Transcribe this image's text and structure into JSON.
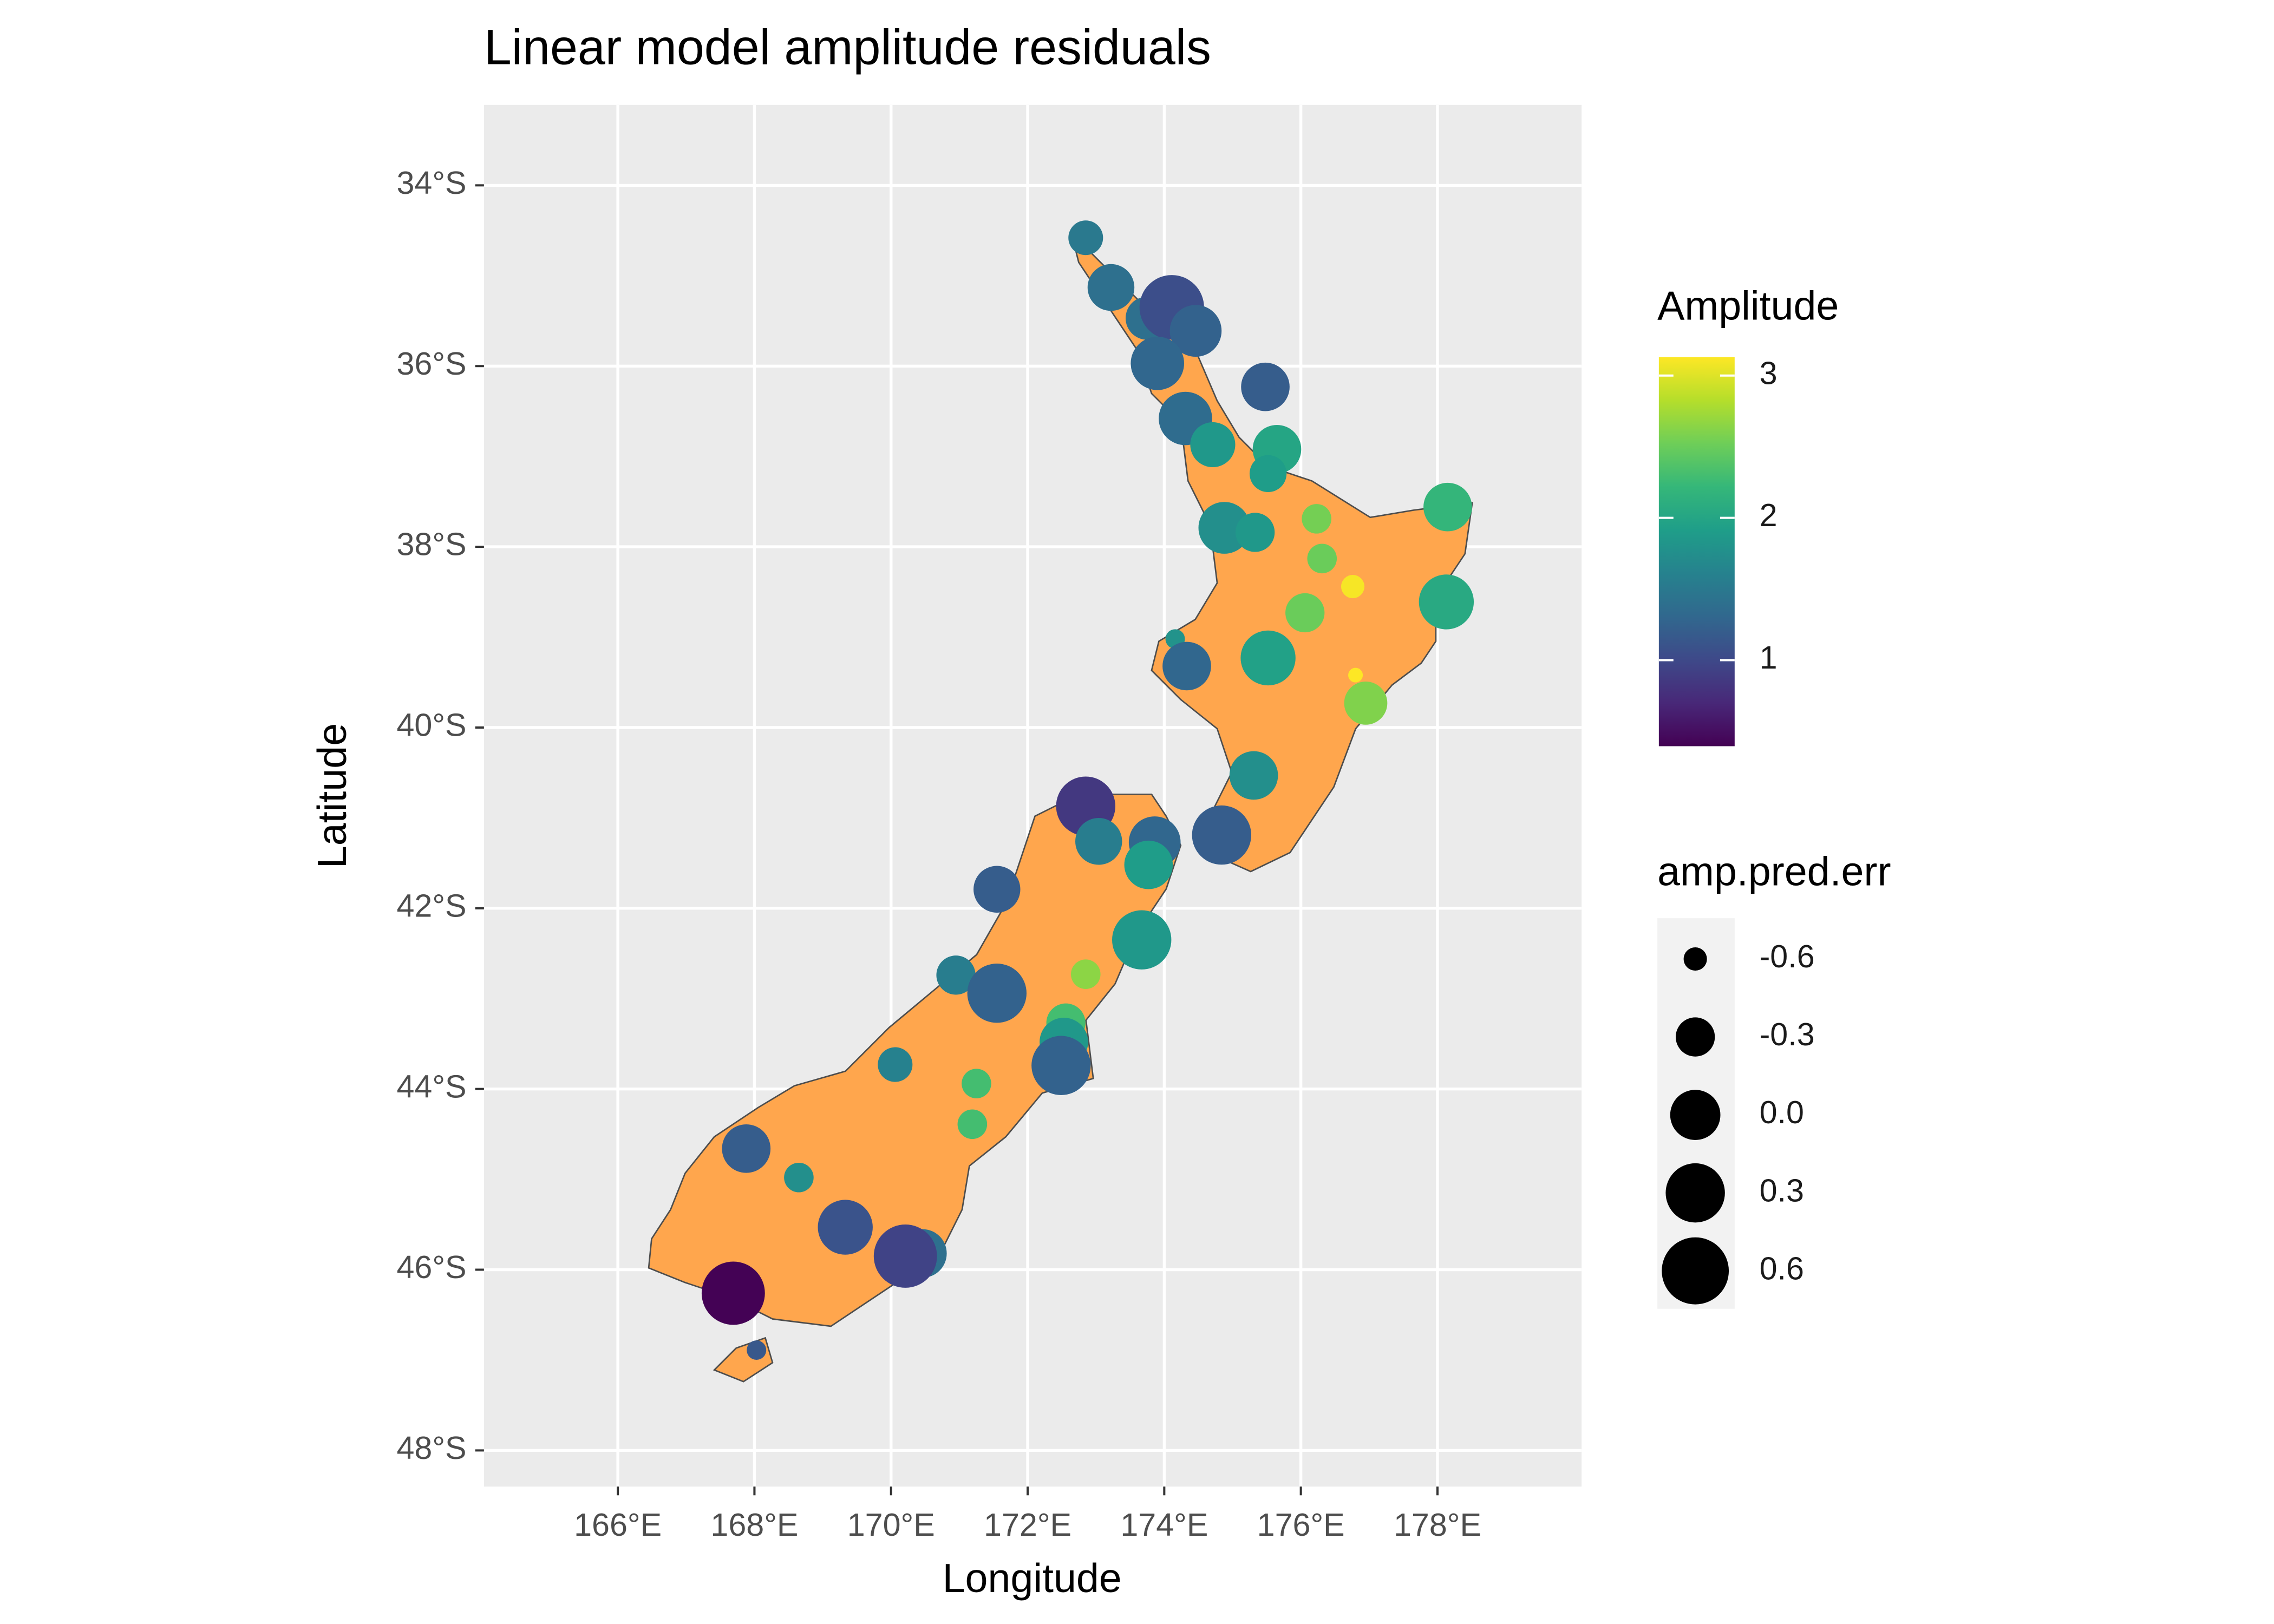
{
  "chart_data": {
    "type": "scatter",
    "title": "Linear model amplitude residuals",
    "x_label": "Longitude",
    "y_label": "Latitude",
    "xlim": [
      164.04,
      180.11
    ],
    "ylim": [
      -48.4,
      -33.11
    ],
    "xticks": [
      {
        "value": 166,
        "label": "166°E"
      },
      {
        "value": 168,
        "label": "168°E"
      },
      {
        "value": 170,
        "label": "170°E"
      },
      {
        "value": 172,
        "label": "172°E"
      },
      {
        "value": 174,
        "label": "174°E"
      },
      {
        "value": 176,
        "label": "176°E"
      },
      {
        "value": 178,
        "label": "178°E"
      }
    ],
    "yticks": [
      {
        "value": -34,
        "label": "34°S"
      },
      {
        "value": -36,
        "label": "36°S"
      },
      {
        "value": -38,
        "label": "38°S"
      },
      {
        "value": -40,
        "label": "40°S"
      },
      {
        "value": -42,
        "label": "42°S"
      },
      {
        "value": -44,
        "label": "44°S"
      },
      {
        "value": -46,
        "label": "46°S"
      },
      {
        "value": -48,
        "label": "48°S"
      }
    ],
    "grid": true,
    "land_color": "#ffa64d",
    "x": [
      172.85,
      173.22,
      173.75,
      174.11,
      174.46,
      173.9,
      175.48,
      174.31,
      174.71,
      175.65,
      175.52,
      174.88,
      175.33,
      176.23,
      176.31,
      178.15,
      176.76,
      176.06,
      178.13,
      174.16,
      174.33,
      175.52,
      176.8,
      176.95,
      175.31,
      172.85,
      173.04,
      173.86,
      174.84,
      173.77,
      171.55,
      173.67,
      172.85,
      170.95,
      171.55,
      172.56,
      172.53,
      172.49,
      170.06,
      171.25,
      171.19,
      167.88,
      168.65,
      169.33,
      170.46,
      170.21,
      167.69,
      168.03
    ],
    "values": [
      -34.58,
      -35.13,
      -35.47,
      -35.35,
      -35.61,
      -35.97,
      -36.23,
      -36.58,
      -36.87,
      -36.92,
      -37.19,
      -37.79,
      -37.84,
      -37.69,
      -38.13,
      -37.56,
      -38.44,
      -38.73,
      -38.61,
      -39.02,
      -39.32,
      -39.23,
      -39.42,
      -39.73,
      -40.53,
      -40.87,
      -41.26,
      -41.27,
      -41.19,
      -41.52,
      -41.79,
      -42.35,
      -42.73,
      -42.74,
      -42.94,
      -43.27,
      -43.48,
      -43.74,
      -43.73,
      -43.94,
      -44.39,
      -44.66,
      -44.98,
      -45.53,
      -45.82,
      -45.85,
      -46.26,
      -46.89
    ],
    "amplitude": [
      1.5,
      1.4,
      1.4,
      1.05,
      1.25,
      1.3,
      1.2,
      1.35,
      1.85,
      2.0,
      1.9,
      1.75,
      1.85,
      2.55,
      2.5,
      2.2,
      3.1,
      2.5,
      2.05,
      1.8,
      1.3,
      1.95,
      3.2,
      2.6,
      1.75,
      0.85,
      1.55,
      1.3,
      1.2,
      1.9,
      1.2,
      1.85,
      2.65,
      1.55,
      1.25,
      2.3,
      1.85,
      1.25,
      1.6,
      2.3,
      2.3,
      1.2,
      1.75,
      1.1,
      1.4,
      0.95,
      0.4,
      1.15
    ],
    "amp_pred_err": [
      -0.4,
      -0.1,
      -0.2,
      0.5,
      0.05,
      0.1,
      -0.05,
      0.1,
      -0.15,
      -0.05,
      -0.35,
      0.05,
      -0.3,
      -0.5,
      -0.5,
      -0.05,
      -0.6,
      -0.3,
      0.15,
      -0.65,
      -0.05,
      0.15,
      -0.7,
      -0.2,
      -0.05,
      0.3,
      -0.1,
      0.05,
      0.3,
      -0.05,
      -0.1,
      0.3,
      -0.5,
      -0.3,
      0.3,
      -0.3,
      -0.05,
      0.3,
      -0.4,
      -0.5,
      -0.5,
      -0.05,
      -0.5,
      0.15,
      -0.05,
      0.45,
      0.45,
      -0.65
    ],
    "colormap": [
      "#440154",
      "#482878",
      "#3e4989",
      "#31688e",
      "#26828e",
      "#1f9e89",
      "#35b779",
      "#6ece58",
      "#b5de2b",
      "#fde725"
    ],
    "color_legend": {
      "title": "Amplitude",
      "lim": [
        0.395,
        3.13
      ],
      "ticks": [
        1,
        2,
        3
      ]
    },
    "size_legend": {
      "title": "amp.pred.err",
      "color": "#000000",
      "breaks": [
        -0.6,
        -0.3,
        {
          "value": 0,
          "label": "0.0"
        },
        0.3,
        0.6
      ]
    }
  }
}
